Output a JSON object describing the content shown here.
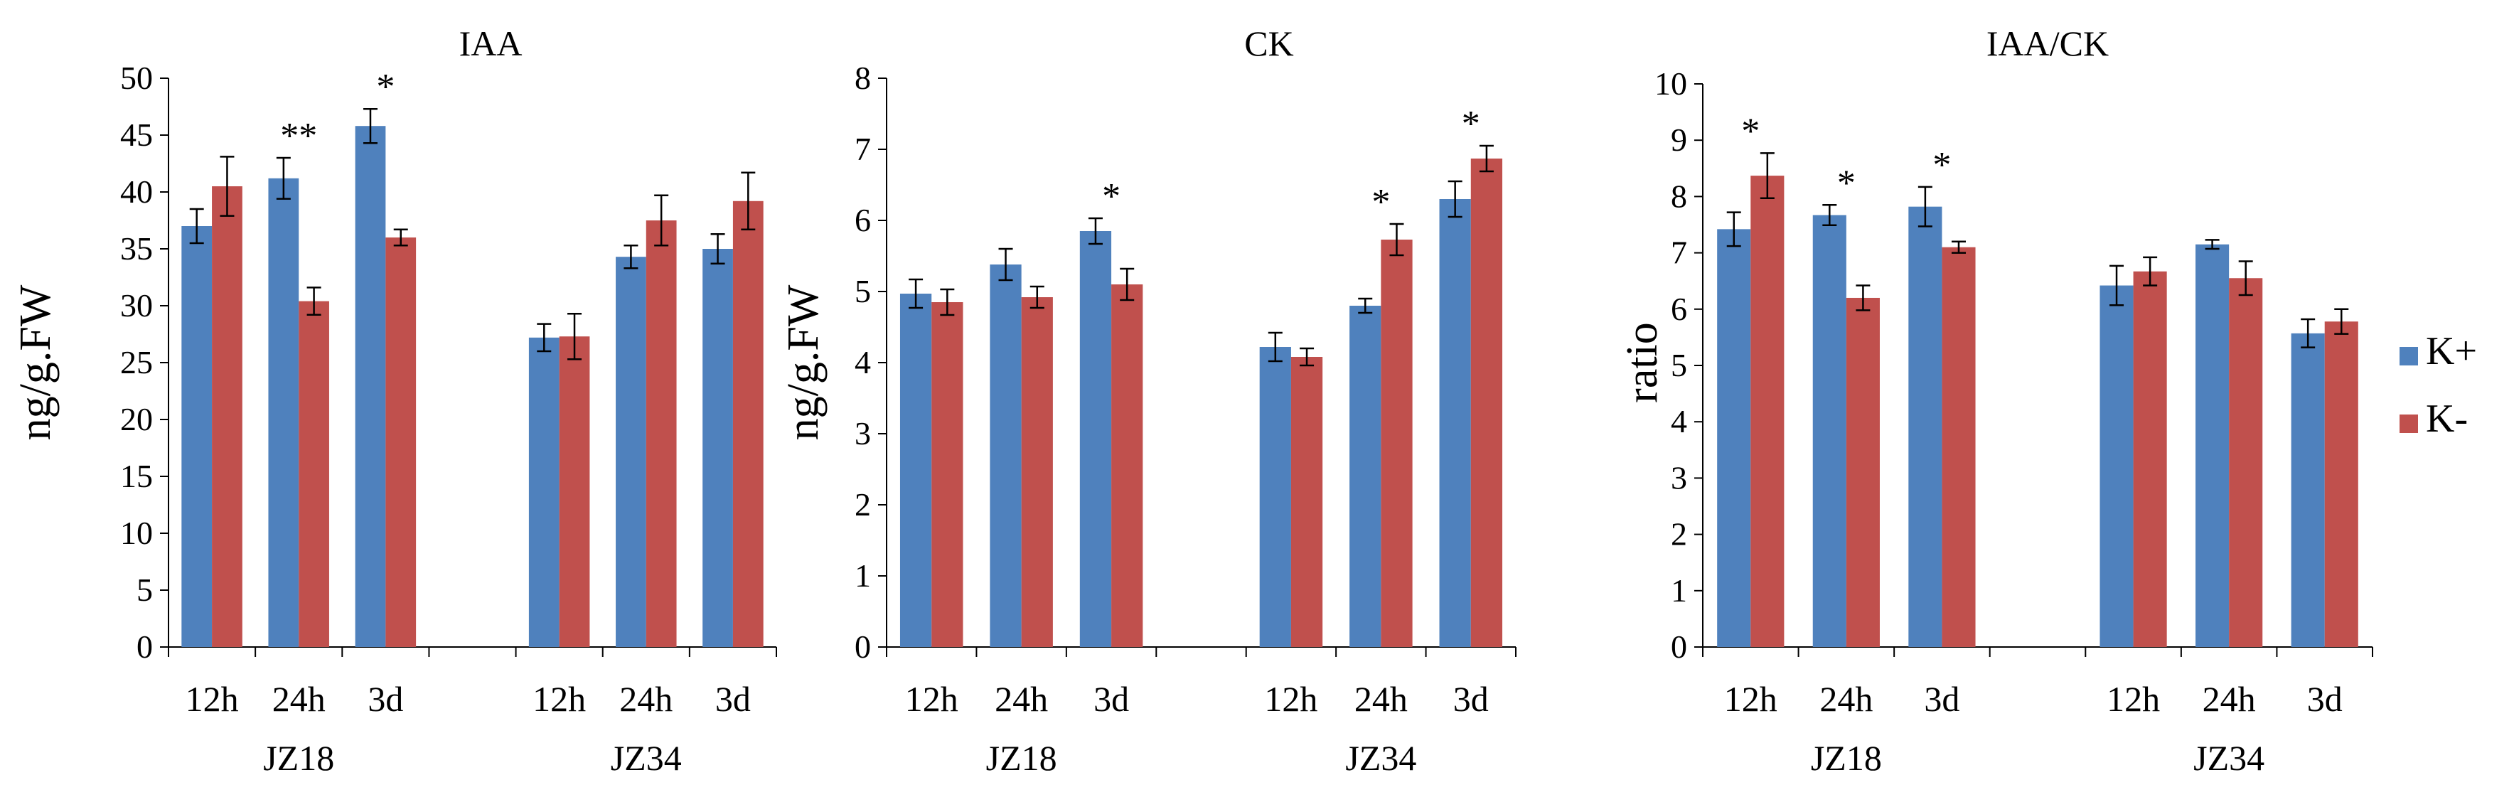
{
  "legend": {
    "entries": [
      {
        "label": "K+",
        "color": "#4F81BD"
      },
      {
        "label": "K-",
        "color": "#C0504D"
      }
    ],
    "placement": "right"
  },
  "chart_data": [
    {
      "type": "bar",
      "title": "IAA",
      "ylabel": "ng/g.FW",
      "ylim": [
        0,
        50
      ],
      "yticks": [
        "0",
        "5",
        "10",
        "15",
        "20",
        "25",
        "30",
        "35",
        "40",
        "45",
        "50"
      ],
      "categories": [
        "12h",
        "24h",
        "3d",
        "",
        "12h",
        "24h",
        "3d"
      ],
      "groups": [
        {
          "label": "JZ18"
        },
        {
          "label": "JZ34"
        }
      ],
      "series": [
        {
          "name": "K+",
          "values": [
            37.0,
            41.2,
            45.8,
            null,
            27.2,
            34.3,
            35.0
          ],
          "errors": [
            1.5,
            1.8,
            1.5,
            null,
            1.2,
            1.0,
            1.3
          ]
        },
        {
          "name": "K-",
          "values": [
            40.5,
            30.4,
            36.0,
            null,
            27.3,
            37.5,
            39.2
          ],
          "errors": [
            2.6,
            1.2,
            0.7,
            null,
            2.0,
            2.2,
            2.5
          ]
        }
      ],
      "annotations": [
        {
          "category": "24h",
          "group": "JZ18",
          "text": "**"
        },
        {
          "category": "3d",
          "group": "JZ18",
          "text": "*"
        }
      ]
    },
    {
      "type": "bar",
      "title": "CK",
      "ylabel": "ng/g.FW",
      "ylim": [
        0,
        8
      ],
      "yticks": [
        "0",
        "1",
        "2",
        "3",
        "4",
        "5",
        "6",
        "7",
        "8"
      ],
      "categories": [
        "12h",
        "24h",
        "3d",
        "",
        "12h",
        "24h",
        "3d"
      ],
      "groups": [
        {
          "label": "JZ18"
        },
        {
          "label": "JZ34"
        }
      ],
      "series": [
        {
          "name": "K+",
          "values": [
            4.97,
            5.38,
            5.85,
            null,
            4.22,
            4.8,
            6.3
          ],
          "errors": [
            0.2,
            0.22,
            0.18,
            null,
            0.2,
            0.1,
            0.25
          ]
        },
        {
          "name": "K-",
          "values": [
            4.85,
            4.92,
            5.1,
            null,
            4.08,
            5.73,
            6.87
          ],
          "errors": [
            0.18,
            0.15,
            0.22,
            null,
            0.12,
            0.22,
            0.18
          ]
        }
      ],
      "annotations": [
        {
          "category": "3d",
          "group": "JZ18",
          "text": "*"
        },
        {
          "category": "24h",
          "group": "JZ34",
          "text": "*"
        },
        {
          "category": "3d",
          "group": "JZ34",
          "text": "*"
        }
      ]
    },
    {
      "type": "bar",
      "title": "IAA/CK",
      "ylabel": "ratio",
      "ylim": [
        0,
        10
      ],
      "yticks": [
        "0",
        "1",
        "2",
        "3",
        "4",
        "5",
        "6",
        "7",
        "8",
        "9",
        "10"
      ],
      "categories": [
        "12h",
        "24h",
        "3d",
        "",
        "12h",
        "24h",
        "3d"
      ],
      "groups": [
        {
          "label": "JZ18"
        },
        {
          "label": "JZ34"
        }
      ],
      "series": [
        {
          "name": "K+",
          "values": [
            7.42,
            7.67,
            7.82,
            null,
            6.42,
            7.15,
            5.57
          ],
          "errors": [
            0.3,
            0.18,
            0.35,
            null,
            0.35,
            0.08,
            0.25
          ]
        },
        {
          "name": "K-",
          "values": [
            8.37,
            6.2,
            7.1,
            null,
            6.67,
            6.55,
            5.78
          ],
          "errors": [
            0.4,
            0.22,
            0.1,
            null,
            0.25,
            0.3,
            0.22
          ]
        }
      ],
      "annotations": [
        {
          "category": "12h",
          "group": "JZ18",
          "text": "*"
        },
        {
          "category": "24h",
          "group": "JZ18",
          "text": "*"
        },
        {
          "category": "3d",
          "group": "JZ18",
          "text": "*"
        }
      ]
    }
  ]
}
